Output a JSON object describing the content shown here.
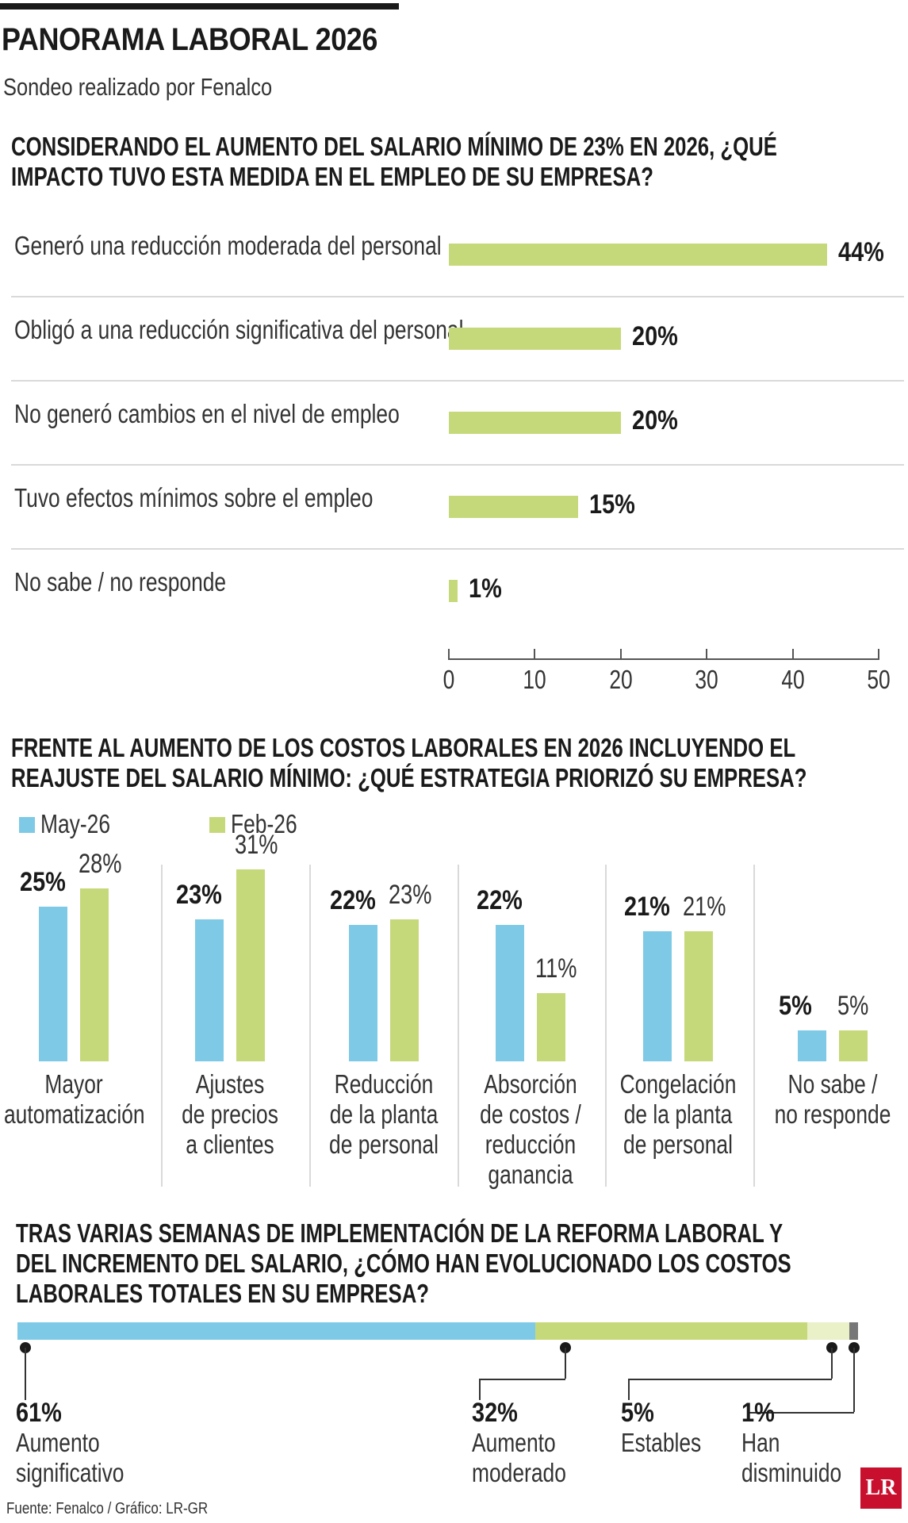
{
  "header": {
    "title": "PANORAMA LABORAL 2026",
    "subtitle": "Sondeo realizado por Fenalco"
  },
  "colors": {
    "green": "#c6d97a",
    "blue": "#7ecae6",
    "pale": "#eaf0c8",
    "grey": "#777777"
  },
  "chart_data": [
    {
      "type": "bar",
      "orientation": "horizontal",
      "title": "CONSIDERANDO EL AUMENTO DEL SALARIO MÍNIMO DE 23% EN 2026, ¿QUÉ IMPACTO TUVO ESTA MEDIDA EN EL EMPLEO DE SU EMPRESA?",
      "title_lines": [
        "CONSIDERANDO EL AUMENTO DEL SALARIO MÍNIMO DE 23% EN 2026, ¿QUÉ",
        "IMPACTO TUVO ESTA MEDIDA EN EL EMPLEO DE SU EMPRESA?"
      ],
      "categories": [
        "Generó una reducción moderada del personal",
        "Obligó a una reducción significativa del personal",
        "No generó cambios en el nivel de empleo",
        "Tuvo efectos mínimos sobre el empleo",
        "No sabe / no responde"
      ],
      "values": [
        44,
        20,
        20,
        15,
        1
      ],
      "value_labels": [
        "44%",
        "20%",
        "20%",
        "15%",
        "1%"
      ],
      "xlim": [
        0,
        50
      ],
      "ticks": [
        "0",
        "10",
        "20",
        "30",
        "40",
        "50"
      ]
    },
    {
      "type": "bar",
      "title": "FRENTE AL AUMENTO DE LOS COSTOS LABORALES EN 2026 INCLUYENDO EL REAJUSTE DEL SALARIO MÍNIMO: ¿QUÉ ESTRATEGIA PRIORIZÓ SU EMPRESA?",
      "title_lines": [
        "FRENTE AL AUMENTO DE LOS COSTOS LABORALES EN 2026 INCLUYENDO EL",
        "REAJUSTE DEL SALARIO MÍNIMO: ¿QUÉ ESTRATEGIA PRIORIZÓ SU EMPRESA?"
      ],
      "legend": "top-left",
      "categories": [
        "Mayor automatización",
        "Ajustes de precios a clientes",
        "Reducción de la planta de personal",
        "Absorción de costos / reducción ganancia",
        "Congelación de la planta de personal",
        "No sabe / no responde"
      ],
      "category_lines": [
        [
          "Mayor",
          "automatización"
        ],
        [
          "Ajustes",
          "de precios",
          "a clientes"
        ],
        [
          "Reducción",
          "de la planta",
          "de personal"
        ],
        [
          "Absorción",
          "de costos /",
          "reducción",
          "ganancia"
        ],
        [
          "Congelación",
          "de la planta",
          "de personal"
        ],
        [
          "No sabe /",
          "no responde"
        ]
      ],
      "series": [
        {
          "name": "May-26",
          "values": [
            25,
            23,
            22,
            22,
            21,
            5
          ],
          "labels": [
            "25%",
            "23%",
            "22%",
            "22%",
            "21%",
            "5%"
          ]
        },
        {
          "name": "Feb-26",
          "values": [
            28,
            31,
            23,
            11,
            21,
            5
          ],
          "labels": [
            "28%",
            "31%",
            "23%",
            "11%",
            "21%",
            "5%"
          ]
        }
      ]
    },
    {
      "type": "bar",
      "stacked": true,
      "title": "TRAS VARIAS SEMANAS DE IMPLEMENTACIÓN DE LA REFORMA LABORAL Y DEL INCREMENTO DEL SALARIO, ¿CÓMO HAN EVOLUCIONADO LOS COSTOS LABORALES TOTALES EN SU EMPRESA?",
      "title_lines": [
        "TRAS VARIAS SEMANAS DE IMPLEMENTACIÓN DE LA REFORMA LABORAL Y",
        "DEL INCREMENTO DEL SALARIO, ¿CÓMO HAN EVOLUCIONADO LOS COSTOS",
        "LABORALES TOTALES EN SU EMPRESA?"
      ],
      "segments": [
        {
          "pct": "61%",
          "value": 61,
          "label_lines": [
            "Aumento",
            "significativo"
          ]
        },
        {
          "pct": "32%",
          "value": 32,
          "label_lines": [
            "Aumento",
            "moderado"
          ]
        },
        {
          "pct": "5%",
          "value": 5,
          "label_lines": [
            "Estables"
          ]
        },
        {
          "pct": "1%",
          "value": 1,
          "label_lines": [
            "Han",
            "disminuido"
          ]
        }
      ]
    }
  ],
  "footer": {
    "source": "Fuente: Fenalco / Gráfico: LR-GR",
    "logo": "LR"
  }
}
